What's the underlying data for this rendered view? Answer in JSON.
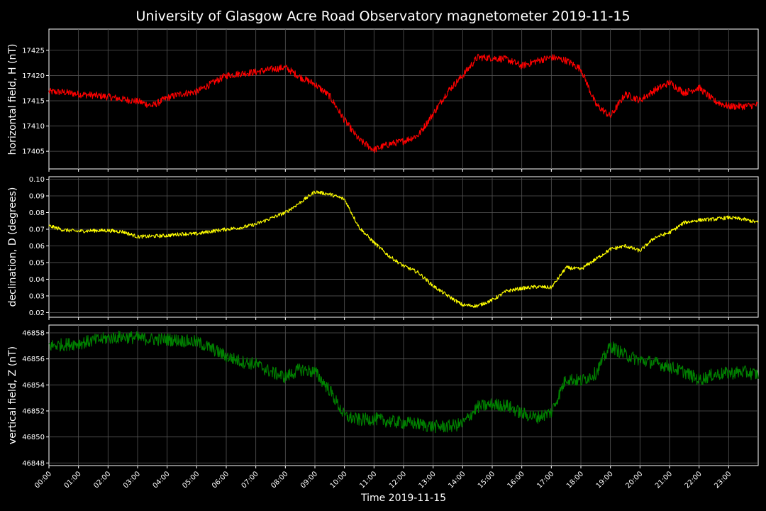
{
  "chart_data": {
    "title": "University of Glasgow Acre Road Observatory magnetometer 2019-11-15",
    "xlabel": "Time 2019-11-15",
    "type": "line",
    "x_unit": "hours",
    "x_ticks": [
      "00:00",
      "01:00",
      "02:00",
      "03:00",
      "04:00",
      "05:00",
      "06:00",
      "07:00",
      "08:00",
      "09:00",
      "10:00",
      "11:00",
      "12:00",
      "13:00",
      "14:00",
      "15:00",
      "16:00",
      "17:00",
      "18:00",
      "19:00",
      "20:00",
      "21:00",
      "22:00",
      "23:00"
    ],
    "xlim": [
      0,
      24
    ],
    "grid": true,
    "panels": [
      {
        "ylabel": "horizontal field, H (nT)",
        "color": "#ff0000",
        "ylim": [
          17401.5,
          17429.2
        ],
        "y_ticks": [
          "17405",
          "17410",
          "17415",
          "17420",
          "17425"
        ],
        "y_tick_values": [
          17405,
          17410,
          17415,
          17420,
          17425
        ],
        "series_x": [
          0,
          0.5,
          1,
          1.5,
          2,
          2.5,
          3,
          3.5,
          4,
          4.5,
          5,
          5.5,
          6,
          6.5,
          7,
          7.5,
          8,
          8.5,
          9,
          9.5,
          10,
          10.5,
          11,
          11.5,
          12,
          12.5,
          13,
          13.5,
          14,
          14.5,
          15,
          15.5,
          16,
          16.5,
          17,
          17.5,
          18,
          18.5,
          19,
          19.5,
          20,
          20.5,
          21,
          21.5,
          22,
          22.5,
          23,
          23.5,
          24
        ],
        "values": [
          17416.8,
          17416.7,
          17416.3,
          17416.1,
          17415.8,
          17415.3,
          17414.9,
          17414.0,
          17415.6,
          17416.4,
          17416.8,
          17418.4,
          17420.0,
          17420.4,
          17420.7,
          17421.2,
          17421.6,
          17419.7,
          17418.3,
          17415.9,
          17411.2,
          17407.2,
          17405.3,
          17406.4,
          17407.0,
          17408.2,
          17412.4,
          17416.9,
          17420.0,
          17423.6,
          17423.5,
          17423.2,
          17421.9,
          17422.9,
          17423.6,
          17423.0,
          17421.3,
          17414.3,
          17411.9,
          17416.3,
          17415.1,
          17417.1,
          17418.6,
          17416.6,
          17417.6,
          17415.0,
          17413.9,
          17413.9,
          17414.2
        ],
        "noise": 0.7
      },
      {
        "ylabel": "declination, D (degrees)",
        "color": "#ffff00",
        "ylim": [
          0.0172,
          0.1015
        ],
        "y_ticks": [
          "0.02",
          "0.03",
          "0.04",
          "0.05",
          "0.06",
          "0.07",
          "0.08",
          "0.09",
          "0.10"
        ],
        "y_tick_values": [
          0.02,
          0.03,
          0.04,
          0.05,
          0.06,
          0.07,
          0.08,
          0.09,
          0.1
        ],
        "series_x": [
          0,
          0.5,
          1,
          1.5,
          2,
          2.5,
          3,
          3.5,
          4,
          4.5,
          5,
          5.5,
          6,
          6.5,
          7,
          7.5,
          8,
          8.5,
          9,
          9.5,
          10,
          10.5,
          11,
          11.5,
          12,
          12.5,
          13,
          13.5,
          14,
          14.5,
          15,
          15.5,
          16,
          16.5,
          17,
          17.5,
          18,
          18.5,
          19,
          19.5,
          20,
          20.5,
          21,
          21.5,
          22,
          22.5,
          23,
          23.5,
          24
        ],
        "values": [
          0.072,
          0.0695,
          0.0688,
          0.0692,
          0.0692,
          0.0685,
          0.0655,
          0.0658,
          0.0662,
          0.0672,
          0.0672,
          0.0688,
          0.07,
          0.071,
          0.073,
          0.0765,
          0.08,
          0.086,
          0.0925,
          0.091,
          0.088,
          0.071,
          0.062,
          0.054,
          0.048,
          0.044,
          0.036,
          0.03,
          0.0245,
          0.024,
          0.0275,
          0.033,
          0.0345,
          0.0355,
          0.035,
          0.047,
          0.046,
          0.052,
          0.058,
          0.06,
          0.057,
          0.065,
          0.068,
          0.074,
          0.0755,
          0.076,
          0.077,
          0.076,
          0.074
        ],
        "noise": 0.0011
      },
      {
        "ylabel": "vertical field, Z (nT)",
        "color": "#008000",
        "ylim": [
          46847.8,
          46858.6
        ],
        "y_ticks": [
          "46848",
          "46850",
          "46852",
          "46854",
          "46856",
          "46858"
        ],
        "y_tick_values": [
          46848,
          46850,
          46852,
          46854,
          46856,
          46858
        ],
        "series_x": [
          0,
          0.5,
          1,
          1.5,
          2,
          2.5,
          3,
          3.5,
          4,
          4.5,
          5,
          5.5,
          6,
          6.5,
          7,
          7.5,
          8,
          8.5,
          9,
          9.5,
          10,
          10.5,
          11,
          11.5,
          12,
          12.5,
          13,
          13.5,
          14,
          14.5,
          15,
          15.5,
          16,
          16.5,
          17,
          17.5,
          18,
          18.5,
          19,
          19.5,
          20,
          20.5,
          21,
          21.5,
          22,
          22.5,
          23,
          23.5,
          24
        ],
        "values": [
          46857.0,
          46857.1,
          46857.2,
          46857.4,
          46857.6,
          46857.7,
          46857.6,
          46857.5,
          46857.5,
          46857.4,
          46857.3,
          46856.8,
          46856.2,
          46855.8,
          46855.6,
          46855.0,
          46854.6,
          46855.2,
          46855.0,
          46853.6,
          46851.6,
          46851.3,
          46851.4,
          46851.2,
          46851.1,
          46851.0,
          46850.8,
          46850.8,
          46851.0,
          46852.3,
          46852.5,
          46852.4,
          46851.8,
          46851.5,
          46851.9,
          46854.5,
          46854.3,
          46854.9,
          46857.0,
          46856.3,
          46855.9,
          46855.7,
          46855.4,
          46855.0,
          46854.4,
          46854.8,
          46854.9,
          46855.0,
          46854.8
        ],
        "noise": 0.5
      }
    ]
  }
}
